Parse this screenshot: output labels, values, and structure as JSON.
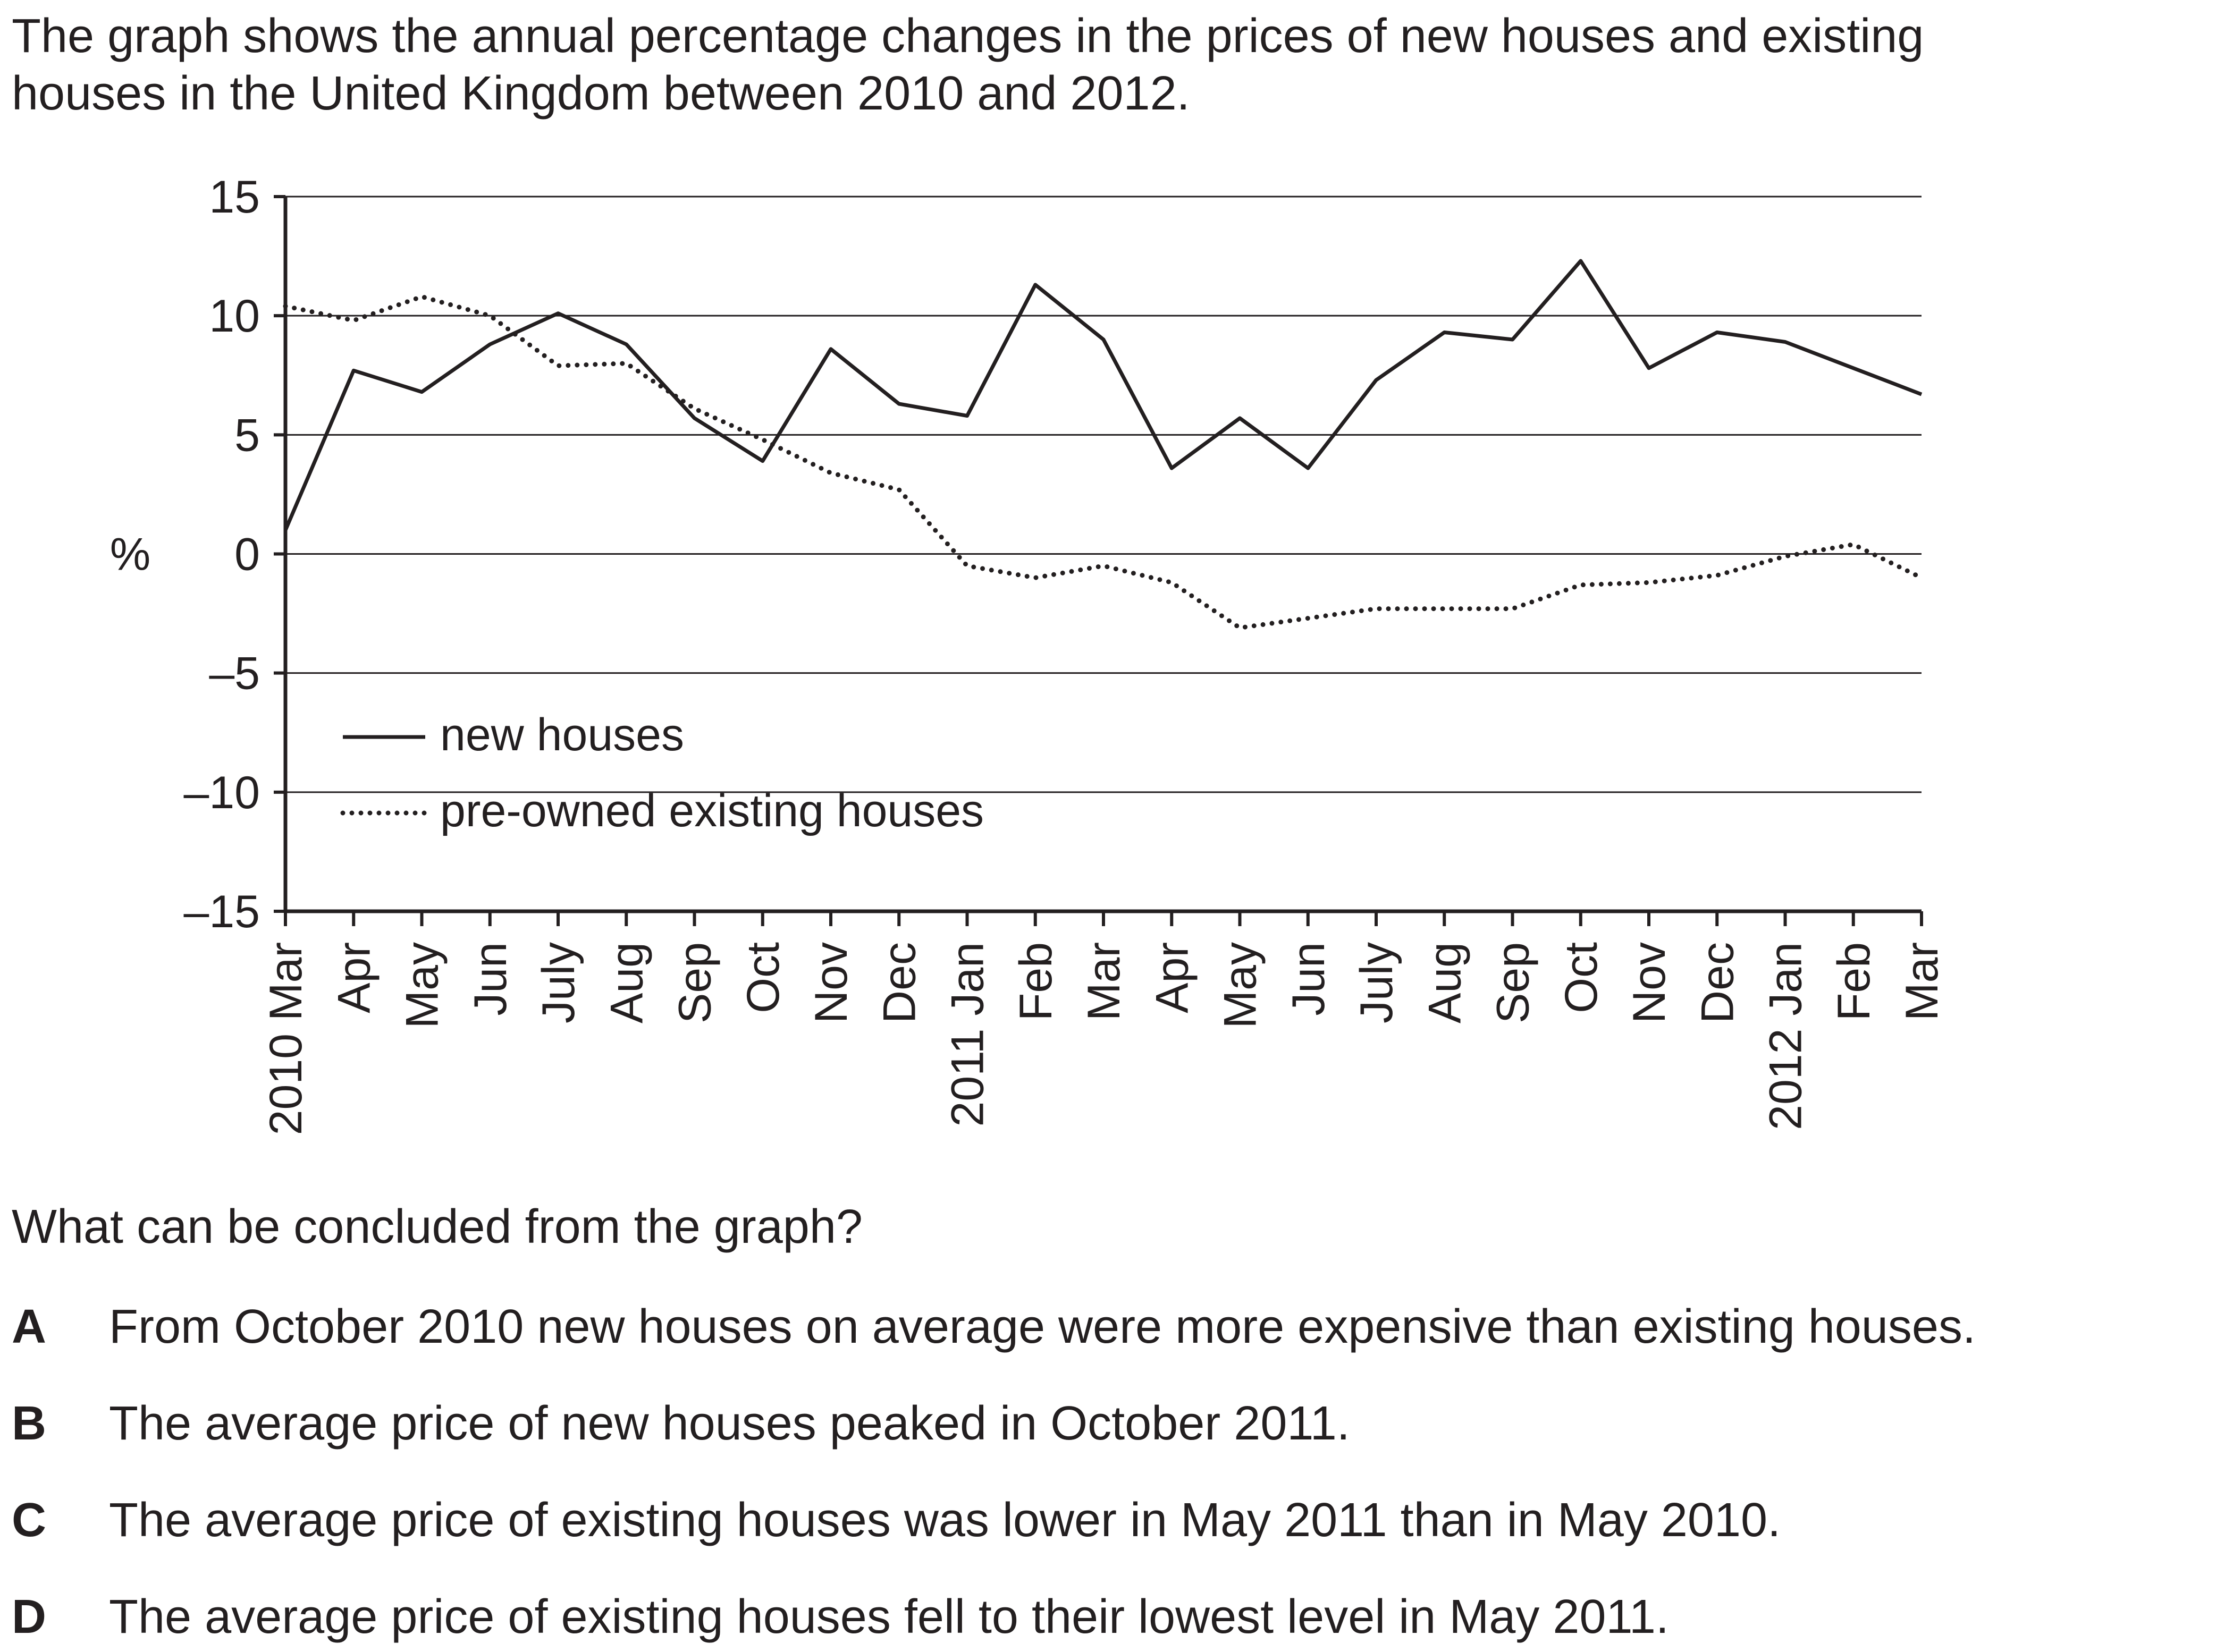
{
  "intro": {
    "line1": "The graph shows the annual percentage changes in the prices of new houses and existing",
    "line2": "houses in the United Kingdom between 2010 and 2012."
  },
  "chart_data": {
    "type": "line",
    "ylabel": "%",
    "ylim": [
      -15,
      15
    ],
    "yticks": [
      "15",
      "10",
      "5",
      "0",
      "–5",
      "–10",
      "–15"
    ],
    "x_month_labels": [
      "Mar",
      "Apr",
      "May",
      "Jun",
      "July",
      "Aug",
      "Sep",
      "Oct",
      "Nov",
      "Dec",
      "Jan",
      "Feb",
      "Mar",
      "Apr",
      "May",
      "Jun",
      "July",
      "Aug",
      "Sep",
      "Oct",
      "Nov",
      "Dec",
      "Jan",
      "Feb",
      "Mar"
    ],
    "x_year_labels": [
      {
        "index": 0,
        "label": "2010"
      },
      {
        "index": 10,
        "label": "2011"
      },
      {
        "index": 22,
        "label": "2012"
      }
    ],
    "legend_position": "bottom-left",
    "grid": "horizontal",
    "series": [
      {
        "name": "new houses",
        "style": "solid",
        "values": [
          1.0,
          7.7,
          6.8,
          8.8,
          10.1,
          8.8,
          5.7,
          3.9,
          8.6,
          6.3,
          5.8,
          11.3,
          9.0,
          3.6,
          5.7,
          3.6,
          7.3,
          9.3,
          9.0,
          12.3,
          7.8,
          9.3,
          8.9,
          7.8,
          6.7
        ]
      },
      {
        "name": "pre-owned existing houses",
        "style": "dotted",
        "values": [
          10.4,
          9.8,
          10.8,
          10.0,
          7.9,
          8.0,
          6.1,
          4.8,
          3.4,
          2.7,
          -0.5,
          -1.0,
          -0.5,
          -1.2,
          -3.1,
          -2.7,
          -2.3,
          -2.3,
          -2.3,
          -1.3,
          -1.2,
          -0.9,
          -0.1,
          0.4,
          -1.0
        ]
      }
    ]
  },
  "question": "What can be concluded from the graph?",
  "options": [
    {
      "letter": "A",
      "text": "From October 2010 new houses on average were more expensive than existing houses."
    },
    {
      "letter": "B",
      "text": "The average price of new houses peaked in October 2011."
    },
    {
      "letter": "C",
      "text": "The average price of existing houses was lower in May 2011 than in May 2010."
    },
    {
      "letter": "D",
      "text": "The average price of existing houses fell to their lowest level in May 2011."
    }
  ]
}
